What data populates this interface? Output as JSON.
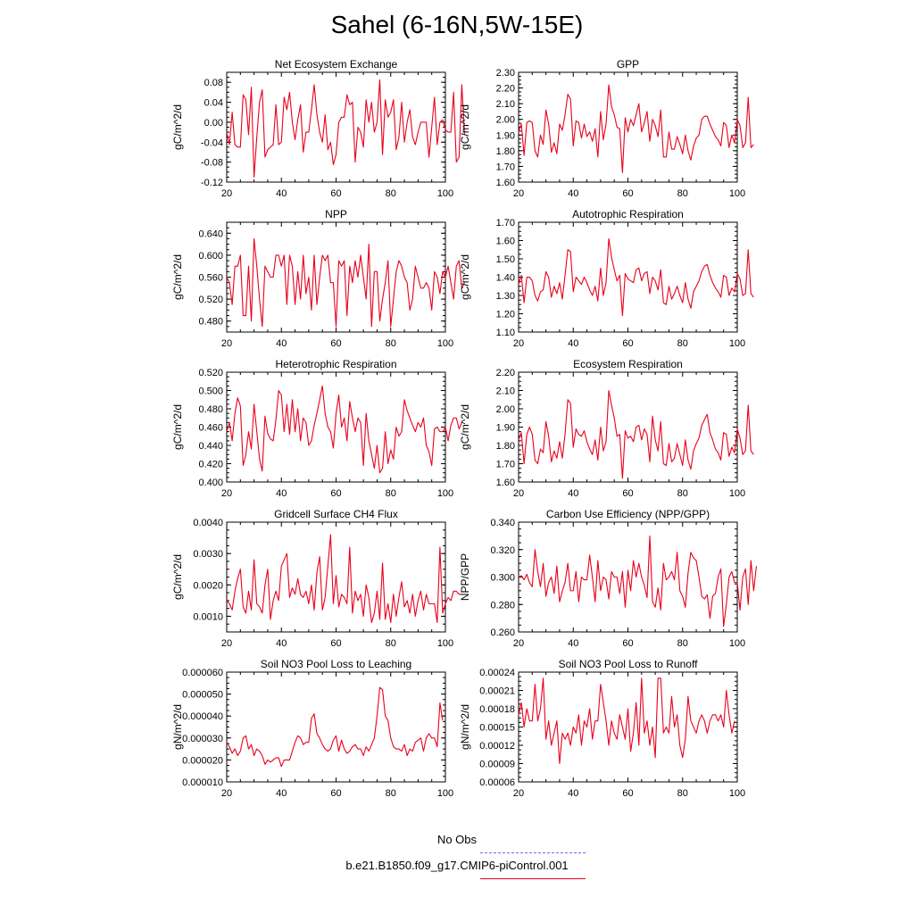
{
  "title": "Sahel (6-16N,5W-15E)",
  "legend": [
    {
      "label": "No Obs",
      "color": "#6b6bff",
      "style": "dashed"
    },
    {
      "label": "b.e21.B1850.f09_g17.CMIP6-piControl.001",
      "color": "#e8001c",
      "style": "solid"
    }
  ],
  "chart_data": [
    {
      "type": "line",
      "title": "Net Ecosystem Exchange",
      "ylabel": "gC/m^2/d",
      "xlim": [
        20,
        100
      ],
      "ylim": [
        -0.12,
        0.1
      ],
      "yticks": [
        -0.12,
        -0.08,
        -0.04,
        0.0,
        0.04,
        0.08
      ],
      "ytick_labels": [
        "-0.12",
        "-0.08",
        "-0.04",
        "0.00",
        "0.04",
        "0.08"
      ],
      "xticks": [
        20,
        40,
        60,
        80,
        100
      ],
      "xtick_labels": [
        "20",
        "40",
        "60",
        "80",
        "100"
      ],
      "x_start": 20,
      "values": [
        -0.02,
        -0.045,
        0.02,
        -0.045,
        -0.05,
        -0.05,
        0.055,
        0.045,
        -0.025,
        0.07,
        -0.11,
        -0.03,
        0.04,
        0.065,
        -0.07,
        -0.055,
        -0.05,
        -0.045,
        0.035,
        -0.045,
        -0.04,
        0.05,
        0.025,
        0.06,
        0.0,
        -0.035,
        0.005,
        0.035,
        -0.06,
        -0.02,
        -0.02,
        0.025,
        0.075,
        0.015,
        -0.02,
        -0.04,
        0.015,
        -0.055,
        -0.04,
        -0.085,
        -0.065,
        0.0,
        0.01,
        0.01,
        0.055,
        0.035,
        0.04,
        -0.08,
        -0.01,
        -0.02,
        -0.05,
        0.045,
        0.0,
        0.04,
        -0.02,
        0.0,
        0.085,
        -0.065,
        0.045,
        0.01,
        0.02,
        0.045,
        -0.055,
        -0.03,
        0.04,
        -0.04,
        0.0,
        0.025,
        -0.03,
        -0.045,
        -0.02,
        0.0,
        0.0,
        0.0,
        -0.07,
        -0.01,
        0.05,
        -0.045,
        0.0,
        0.005,
        -0.015,
        -0.02,
        -0.02,
        0.06,
        -0.08,
        -0.07,
        0.075,
        -0.025
      ]
    },
    {
      "type": "line",
      "title": "GPP",
      "ylabel": "gC/m^2/d",
      "xlim": [
        20,
        100
      ],
      "ylim": [
        1.6,
        2.3
      ],
      "yticks": [
        1.6,
        1.7,
        1.8,
        1.9,
        2.0,
        2.1,
        2.2,
        2.3
      ],
      "ytick_labels": [
        "1.60",
        "1.70",
        "1.80",
        "1.90",
        "2.00",
        "2.10",
        "2.20",
        "2.30"
      ],
      "xticks": [
        20,
        40,
        60,
        80,
        100
      ],
      "xtick_labels": [
        "20",
        "40",
        "60",
        "80",
        "100"
      ],
      "x_start": 20,
      "values": [
        1.92,
        1.97,
        1.77,
        1.98,
        1.99,
        1.98,
        1.8,
        1.76,
        1.9,
        1.84,
        2.06,
        1.97,
        1.79,
        1.85,
        1.78,
        1.97,
        1.93,
        2.03,
        2.16,
        2.13,
        1.83,
        1.99,
        1.98,
        1.88,
        1.97,
        1.89,
        1.92,
        1.86,
        1.94,
        1.76,
        2.05,
        1.87,
        1.97,
        2.22,
        2.08,
        2.03,
        1.95,
        1.94,
        1.66,
        2.01,
        1.92,
        2.0,
        1.96,
        2.03,
        2.1,
        1.92,
        1.98,
        2.05,
        1.86,
        2.0,
        1.96,
        1.89,
        2.06,
        1.76,
        1.76,
        1.92,
        1.81,
        1.81,
        1.89,
        1.84,
        1.78,
        1.9,
        1.8,
        1.74,
        1.83,
        1.88,
        1.9,
        2.0,
        2.02,
        2.02,
        1.97,
        1.93,
        1.89,
        1.87,
        1.83,
        1.98,
        1.96,
        1.82,
        1.9,
        1.85,
        2.0,
        1.96,
        1.82,
        1.85,
        2.14,
        1.82,
        1.84
      ]
    },
    {
      "type": "line",
      "title": "NPP",
      "ylabel": "gC/m^2/d",
      "xlim": [
        20,
        100
      ],
      "ylim": [
        0.46,
        0.66
      ],
      "yticks": [
        0.48,
        0.52,
        0.56,
        0.6,
        0.64
      ],
      "ytick_labels": [
        "0.480",
        "0.520",
        "0.560",
        "0.600",
        "0.640"
      ],
      "xticks": [
        20,
        40,
        60,
        80,
        100
      ],
      "xtick_labels": [
        "20",
        "40",
        "60",
        "80",
        "100"
      ],
      "x_start": 20,
      "values": [
        0.56,
        0.55,
        0.51,
        0.58,
        0.58,
        0.6,
        0.49,
        0.49,
        0.58,
        0.48,
        0.63,
        0.58,
        0.52,
        0.47,
        0.58,
        0.57,
        0.56,
        0.56,
        0.6,
        0.6,
        0.58,
        0.6,
        0.51,
        0.6,
        0.58,
        0.51,
        0.57,
        0.52,
        0.6,
        0.53,
        0.56,
        0.5,
        0.6,
        0.51,
        0.56,
        0.6,
        0.59,
        0.6,
        0.55,
        0.55,
        0.47,
        0.59,
        0.58,
        0.59,
        0.49,
        0.58,
        0.55,
        0.59,
        0.56,
        0.6,
        0.56,
        0.52,
        0.62,
        0.47,
        0.57,
        0.57,
        0.48,
        0.52,
        0.55,
        0.59,
        0.47,
        0.52,
        0.57,
        0.59,
        0.58,
        0.56,
        0.55,
        0.5,
        0.52,
        0.58,
        0.56,
        0.54,
        0.54,
        0.55,
        0.54,
        0.5,
        0.57,
        0.56,
        0.53,
        0.57,
        0.56,
        0.58,
        0.55,
        0.52,
        0.58,
        0.59,
        0.54,
        0.55
      ]
    },
    {
      "type": "line",
      "title": "Autotrophic Respiration",
      "ylabel": "gC/m^2/d",
      "xlim": [
        20,
        100
      ],
      "ylim": [
        1.1,
        1.7
      ],
      "yticks": [
        1.1,
        1.2,
        1.3,
        1.4,
        1.5,
        1.6,
        1.7
      ],
      "ytick_labels": [
        "1.10",
        "1.20",
        "1.30",
        "1.40",
        "1.50",
        "1.60",
        "1.70"
      ],
      "xticks": [
        20,
        40,
        60,
        80,
        100
      ],
      "xtick_labels": [
        "20",
        "40",
        "60",
        "80",
        "100"
      ],
      "x_start": 20,
      "values": [
        1.36,
        1.41,
        1.26,
        1.4,
        1.4,
        1.38,
        1.3,
        1.27,
        1.32,
        1.33,
        1.43,
        1.4,
        1.29,
        1.35,
        1.31,
        1.37,
        1.28,
        1.41,
        1.55,
        1.54,
        1.32,
        1.4,
        1.38,
        1.36,
        1.4,
        1.37,
        1.33,
        1.3,
        1.35,
        1.27,
        1.45,
        1.3,
        1.37,
        1.61,
        1.51,
        1.44,
        1.38,
        1.41,
        1.19,
        1.42,
        1.39,
        1.38,
        1.37,
        1.44,
        1.45,
        1.38,
        1.42,
        1.43,
        1.31,
        1.4,
        1.38,
        1.33,
        1.44,
        1.26,
        1.25,
        1.35,
        1.28,
        1.31,
        1.35,
        1.3,
        1.26,
        1.37,
        1.28,
        1.23,
        1.32,
        1.35,
        1.38,
        1.43,
        1.46,
        1.47,
        1.41,
        1.37,
        1.34,
        1.32,
        1.29,
        1.41,
        1.4,
        1.3,
        1.34,
        1.32,
        1.42,
        1.39,
        1.3,
        1.31,
        1.55,
        1.31,
        1.29
      ]
    },
    {
      "type": "line",
      "title": "Heterotrophic Respiration",
      "ylabel": "gC/m^2/d",
      "xlim": [
        20,
        100
      ],
      "ylim": [
        0.4,
        0.52
      ],
      "yticks": [
        0.4,
        0.42,
        0.44,
        0.46,
        0.48,
        0.5,
        0.52
      ],
      "ytick_labels": [
        "0.400",
        "0.420",
        "0.440",
        "0.460",
        "0.480",
        "0.500",
        "0.520"
      ],
      "xticks": [
        20,
        40,
        60,
        80,
        100
      ],
      "xtick_labels": [
        "20",
        "40",
        "60",
        "80",
        "100"
      ],
      "x_start": 20,
      "values": [
        0.455,
        0.465,
        0.445,
        0.475,
        0.492,
        0.483,
        0.418,
        0.43,
        0.455,
        0.436,
        0.485,
        0.455,
        0.425,
        0.412,
        0.472,
        0.453,
        0.447,
        0.445,
        0.468,
        0.5,
        0.495,
        0.455,
        0.485,
        0.452,
        0.49,
        0.455,
        0.48,
        0.445,
        0.47,
        0.465,
        0.44,
        0.445,
        0.462,
        0.475,
        0.49,
        0.505,
        0.475,
        0.46,
        0.455,
        0.437,
        0.475,
        0.495,
        0.46,
        0.47,
        0.445,
        0.488,
        0.47,
        0.455,
        0.47,
        0.465,
        0.418,
        0.475,
        0.445,
        0.43,
        0.415,
        0.44,
        0.41,
        0.415,
        0.455,
        0.42,
        0.435,
        0.425,
        0.46,
        0.45,
        0.455,
        0.49,
        0.478,
        0.47,
        0.462,
        0.455,
        0.465,
        0.46,
        0.47,
        0.44,
        0.433,
        0.418,
        0.458,
        0.46,
        0.455,
        0.455,
        0.46,
        0.445,
        0.462,
        0.47,
        0.47,
        0.458,
        0.465
      ]
    },
    {
      "type": "line",
      "title": "Ecosystem Respiration",
      "ylabel": "gC/m^2/d",
      "xlim": [
        20,
        100
      ],
      "ylim": [
        1.6,
        2.2
      ],
      "yticks": [
        1.6,
        1.7,
        1.8,
        1.9,
        2.0,
        2.1,
        2.2
      ],
      "ytick_labels": [
        "1.60",
        "1.70",
        "1.80",
        "1.90",
        "2.00",
        "2.10",
        "2.20"
      ],
      "xticks": [
        20,
        40,
        60,
        80,
        100
      ],
      "xtick_labels": [
        "20",
        "40",
        "60",
        "80",
        "100"
      ],
      "x_start": 20,
      "values": [
        1.83,
        1.87,
        1.7,
        1.86,
        1.9,
        1.86,
        1.72,
        1.7,
        1.78,
        1.76,
        1.93,
        1.85,
        1.71,
        1.77,
        1.73,
        1.82,
        1.73,
        1.86,
        2.05,
        2.03,
        1.79,
        1.89,
        1.86,
        1.85,
        1.88,
        1.82,
        1.78,
        1.75,
        1.83,
        1.72,
        1.9,
        1.77,
        1.82,
        2.1,
        2.02,
        1.95,
        1.85,
        1.86,
        1.62,
        1.88,
        1.84,
        1.85,
        1.82,
        1.9,
        1.91,
        1.83,
        1.89,
        1.86,
        1.71,
        1.96,
        1.83,
        1.77,
        1.93,
        1.7,
        1.69,
        1.81,
        1.71,
        1.73,
        1.81,
        1.75,
        1.69,
        1.83,
        1.72,
        1.67,
        1.77,
        1.81,
        1.84,
        1.91,
        1.94,
        1.97,
        1.87,
        1.83,
        1.78,
        1.76,
        1.72,
        1.87,
        1.86,
        1.74,
        1.79,
        1.76,
        1.89,
        1.84,
        1.75,
        1.77,
        2.02,
        1.77,
        1.75
      ]
    },
    {
      "type": "line",
      "title": "Gridcell Surface CH4 Flux",
      "ylabel": "gC/m^2/d",
      "xlim": [
        20,
        100
      ],
      "ylim": [
        0.0005,
        0.004
      ],
      "yticks": [
        0.001,
        0.002,
        0.003,
        0.004
      ],
      "ytick_labels": [
        "0.0010",
        "0.0020",
        "0.0030",
        "0.0040"
      ],
      "xticks": [
        20,
        40,
        60,
        80,
        100
      ],
      "xtick_labels": [
        "20",
        "40",
        "60",
        "80",
        "100"
      ],
      "x_start": 20,
      "values": [
        0.0015,
        0.0014,
        0.0012,
        0.0018,
        0.0022,
        0.0025,
        0.0013,
        0.0011,
        0.0018,
        0.0012,
        0.0028,
        0.0014,
        0.0013,
        0.0011,
        0.002,
        0.0025,
        0.0009,
        0.0015,
        0.0018,
        0.0015,
        0.0026,
        0.0028,
        0.003,
        0.0016,
        0.0019,
        0.0017,
        0.0022,
        0.0017,
        0.0016,
        0.0018,
        0.0014,
        0.002,
        0.0012,
        0.0024,
        0.0029,
        0.0012,
        0.0016,
        0.0026,
        0.0036,
        0.0014,
        0.0023,
        0.0013,
        0.0017,
        0.0016,
        0.0014,
        0.0032,
        0.0011,
        0.0018,
        0.0015,
        0.0017,
        0.001,
        0.002,
        0.0016,
        0.0008,
        0.0011,
        0.0018,
        0.0009,
        0.0027,
        0.0009,
        0.0014,
        0.0008,
        0.0017,
        0.001,
        0.0016,
        0.0021,
        0.0013,
        0.0015,
        0.0011,
        0.0017,
        0.001,
        0.0015,
        0.0018,
        0.0012,
        0.0017,
        0.0014,
        0.0014,
        0.0014,
        0.0008,
        0.0032,
        0.0011,
        0.0014,
        0.0016,
        0.0015,
        0.0018,
        0.0018,
        0.0017,
        0.0017
      ]
    },
    {
      "type": "line",
      "title": "Carbon Use Efficiency (NPP/GPP)",
      "ylabel": "NPP/GPP",
      "xlim": [
        20,
        100
      ],
      "ylim": [
        0.26,
        0.34
      ],
      "yticks": [
        0.26,
        0.28,
        0.3,
        0.32,
        0.34
      ],
      "ytick_labels": [
        "0.260",
        "0.280",
        "0.300",
        "0.320",
        "0.340"
      ],
      "xticks": [
        20,
        40,
        60,
        80,
        100
      ],
      "xtick_labels": [
        "20",
        "40",
        "60",
        "80",
        "100"
      ],
      "x_start": 20,
      "values": [
        0.3,
        0.301,
        0.298,
        0.302,
        0.296,
        0.293,
        0.32,
        0.304,
        0.293,
        0.31,
        0.286,
        0.296,
        0.3,
        0.288,
        0.308,
        0.282,
        0.29,
        0.296,
        0.31,
        0.29,
        0.29,
        0.304,
        0.282,
        0.3,
        0.298,
        0.298,
        0.316,
        0.3,
        0.282,
        0.312,
        0.29,
        0.3,
        0.298,
        0.284,
        0.304,
        0.3,
        0.3,
        0.288,
        0.304,
        0.278,
        0.305,
        0.29,
        0.312,
        0.3,
        0.31,
        0.3,
        0.294,
        0.285,
        0.33,
        0.282,
        0.278,
        0.292,
        0.276,
        0.31,
        0.298,
        0.3,
        0.304,
        0.298,
        0.318,
        0.29,
        0.286,
        0.278,
        0.303,
        0.318,
        0.314,
        0.312,
        0.3,
        0.286,
        0.284,
        0.287,
        0.27,
        0.286,
        0.288,
        0.3,
        0.306,
        0.264,
        0.28,
        0.3,
        0.304,
        0.296,
        0.296,
        0.276,
        0.3,
        0.306,
        0.28,
        0.312,
        0.29,
        0.308
      ]
    },
    {
      "type": "line",
      "title": "Soil NO3 Pool Loss to Leaching",
      "ylabel": "gN/m^2/d",
      "xlim": [
        20,
        100
      ],
      "ylim": [
        1e-05,
        6e-05
      ],
      "yticks": [
        1e-05,
        2e-05,
        3e-05,
        4e-05,
        5e-05,
        6e-05
      ],
      "ytick_labels": [
        "0.000010",
        "0.000020",
        "0.000030",
        "0.000040",
        "0.000050",
        "0.000060"
      ],
      "xticks": [
        20,
        40,
        60,
        80,
        100
      ],
      "xtick_labels": [
        "20",
        "40",
        "60",
        "80",
        "100"
      ],
      "x_start": 20,
      "values": [
        2.8e-05,
        2.6e-05,
        2.3e-05,
        2.5e-05,
        2.2e-05,
        2.4e-05,
        3e-05,
        3.1e-05,
        2.5e-05,
        2.7e-05,
        2.2e-05,
        2.5e-05,
        2.4e-05,
        2.2e-05,
        1.8e-05,
        2e-05,
        1.9e-05,
        2e-05,
        2.1e-05,
        2.1e-05,
        1.7e-05,
        2e-05,
        2e-05,
        2e-05,
        2.4e-05,
        2.8e-05,
        3.1e-05,
        3e-05,
        2.7e-05,
        2.8e-05,
        2.8e-05,
        3.9e-05,
        4.1e-05,
        3.2e-05,
        3e-05,
        2.7e-05,
        2.5e-05,
        2.4e-05,
        2.5e-05,
        2.9e-05,
        3.1e-05,
        2.4e-05,
        2.9e-05,
        2.5e-05,
        2.3e-05,
        2.4e-05,
        2.6e-05,
        2.7e-05,
        2.5e-05,
        2.5e-05,
        2.2e-05,
        2.6e-05,
        2.4e-05,
        2.7e-05,
        3e-05,
        4e-05,
        5.3e-05,
        5.2e-05,
        4e-05,
        3.8e-05,
        3e-05,
        2.6e-05,
        2.5e-05,
        2.5e-05,
        2.4e-05,
        2.7e-05,
        2.2e-05,
        2.5e-05,
        2.4e-05,
        2.8e-05,
        2.9e-05,
        3e-05,
        2.4e-05,
        3e-05,
        3.2e-05,
        3e-05,
        3e-05,
        2.6e-05,
        4.6e-05,
        3.8e-05
      ]
    },
    {
      "type": "line",
      "title": "Soil NO3 Pool Loss to Runoff",
      "ylabel": "gN/m^2/d",
      "xlim": [
        20,
        100
      ],
      "ylim": [
        6e-05,
        0.00024
      ],
      "yticks": [
        6e-05,
        9e-05,
        0.00012,
        0.00015,
        0.00018,
        0.00021,
        0.00024
      ],
      "ytick_labels": [
        "0.00006",
        "0.00009",
        "0.00012",
        "0.00015",
        "0.00018",
        "0.00021",
        "0.00024"
      ],
      "xticks": [
        20,
        40,
        60,
        80,
        100
      ],
      "xtick_labels": [
        "20",
        "40",
        "60",
        "80",
        "100"
      ],
      "x_start": 20,
      "values": [
        0.00017,
        0.00019,
        0.00015,
        0.00018,
        0.00016,
        0.00016,
        0.00022,
        0.00016,
        0.00018,
        0.00023,
        0.00013,
        0.00016,
        0.00012,
        0.00014,
        0.00016,
        9e-05,
        0.00014,
        0.00013,
        0.00014,
        0.00012,
        0.00015,
        0.00014,
        0.00017,
        0.00012,
        0.00016,
        0.00015,
        0.00018,
        0.00013,
        0.00016,
        0.00016,
        0.00022,
        0.00019,
        0.00016,
        0.00012,
        0.00016,
        0.00014,
        0.00013,
        0.00017,
        0.00015,
        0.00013,
        0.00018,
        0.00011,
        0.00014,
        0.00019,
        0.00012,
        0.00023,
        0.00014,
        0.00016,
        0.00012,
        0.00015,
        0.0001,
        0.00023,
        0.00023,
        0.00014,
        0.00015,
        0.00014,
        0.0002,
        0.00015,
        0.00017,
        0.00012,
        0.0001,
        0.00013,
        0.0002,
        0.00016,
        0.00015,
        0.00014,
        0.00016,
        0.00017,
        0.00016,
        0.00014,
        0.00016,
        0.00017,
        0.00017,
        0.00016,
        0.00017,
        0.00015,
        0.00021,
        0.00017,
        0.00014,
        0.00016
      ]
    }
  ]
}
